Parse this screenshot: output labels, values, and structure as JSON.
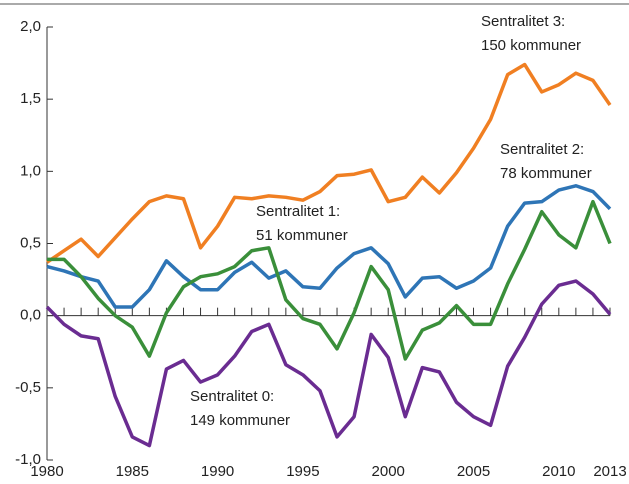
{
  "chart_data": {
    "type": "line",
    "x": [
      1980,
      1981,
      1982,
      1983,
      1984,
      1985,
      1986,
      1987,
      1988,
      1989,
      1990,
      1991,
      1992,
      1993,
      1994,
      1995,
      1996,
      1997,
      1998,
      1999,
      2000,
      2001,
      2002,
      2003,
      2004,
      2005,
      2006,
      2007,
      2008,
      2009,
      2010,
      2011,
      2012,
      2013
    ],
    "xlim": [
      1980,
      2013
    ],
    "xticks": [
      1980,
      1985,
      1990,
      1995,
      2000,
      2005,
      2010,
      2013
    ],
    "ylim": [
      -1,
      2
    ],
    "yticks": [
      {
        "value": -1,
        "label": "-1,0"
      },
      {
        "value": -0.5,
        "label": "-0,5"
      },
      {
        "value": 0,
        "label": "0,0"
      },
      {
        "value": 0.5,
        "label": "0,5"
      },
      {
        "value": 1,
        "label": "1,0"
      },
      {
        "value": 1.5,
        "label": "1,5"
      },
      {
        "value": 2,
        "label": "2,0"
      }
    ],
    "series": [
      {
        "color": "#f07f22",
        "values": [
          0.37,
          0.45,
          0.53,
          0.41,
          0.54,
          0.67,
          0.79,
          0.83,
          0.81,
          0.47,
          0.62,
          0.82,
          0.81,
          0.83,
          0.82,
          0.8,
          0.86,
          0.97,
          0.98,
          1.01,
          0.79,
          0.82,
          0.96,
          0.85,
          0.99,
          1.16,
          1.36,
          1.67,
          1.74,
          1.55,
          1.6,
          1.68,
          1.63,
          1.46
        ]
      },
      {
        "color": "#2e75b6",
        "values": [
          0.34,
          0.31,
          0.27,
          0.24,
          0.06,
          0.06,
          0.18,
          0.38,
          0.27,
          0.18,
          0.18,
          0.3,
          0.37,
          0.26,
          0.31,
          0.2,
          0.19,
          0.33,
          0.43,
          0.47,
          0.36,
          0.13,
          0.26,
          0.27,
          0.19,
          0.24,
          0.33,
          0.62,
          0.78,
          0.79,
          0.87,
          0.9,
          0.86,
          0.74
        ]
      },
      {
        "color": "#3a8f3a",
        "values": [
          0.39,
          0.39,
          0.27,
          0.12,
          0.0,
          -0.08,
          -0.28,
          0.02,
          0.2,
          0.27,
          0.29,
          0.34,
          0.45,
          0.47,
          0.11,
          -0.02,
          -0.06,
          -0.23,
          0.02,
          0.34,
          0.18,
          -0.3,
          -0.1,
          -0.05,
          0.07,
          -0.06,
          -0.06,
          0.22,
          0.46,
          0.72,
          0.56,
          0.47,
          0.79,
          0.5
        ]
      },
      {
        "color": "#6a2c91",
        "values": [
          0.06,
          -0.06,
          -0.14,
          -0.16,
          -0.56,
          -0.84,
          -0.9,
          -0.37,
          -0.31,
          -0.46,
          -0.41,
          -0.28,
          -0.11,
          -0.06,
          -0.34,
          -0.41,
          -0.52,
          -0.84,
          -0.7,
          -0.13,
          -0.29,
          -0.7,
          -0.36,
          -0.39,
          -0.6,
          -0.7,
          -0.76,
          -0.35,
          -0.15,
          0.08,
          0.21,
          0.24,
          0.15,
          0.01
        ]
      }
    ],
    "annotations": [
      [
        "Sentralitet 3:",
        "150 kommuner"
      ],
      [
        "Sentralitet 2:",
        "78 kommuner"
      ],
      [
        "Sentralitet 1:",
        "51 kommuner"
      ],
      [
        "Sentralitet 0:",
        "149 kommuner"
      ]
    ]
  }
}
